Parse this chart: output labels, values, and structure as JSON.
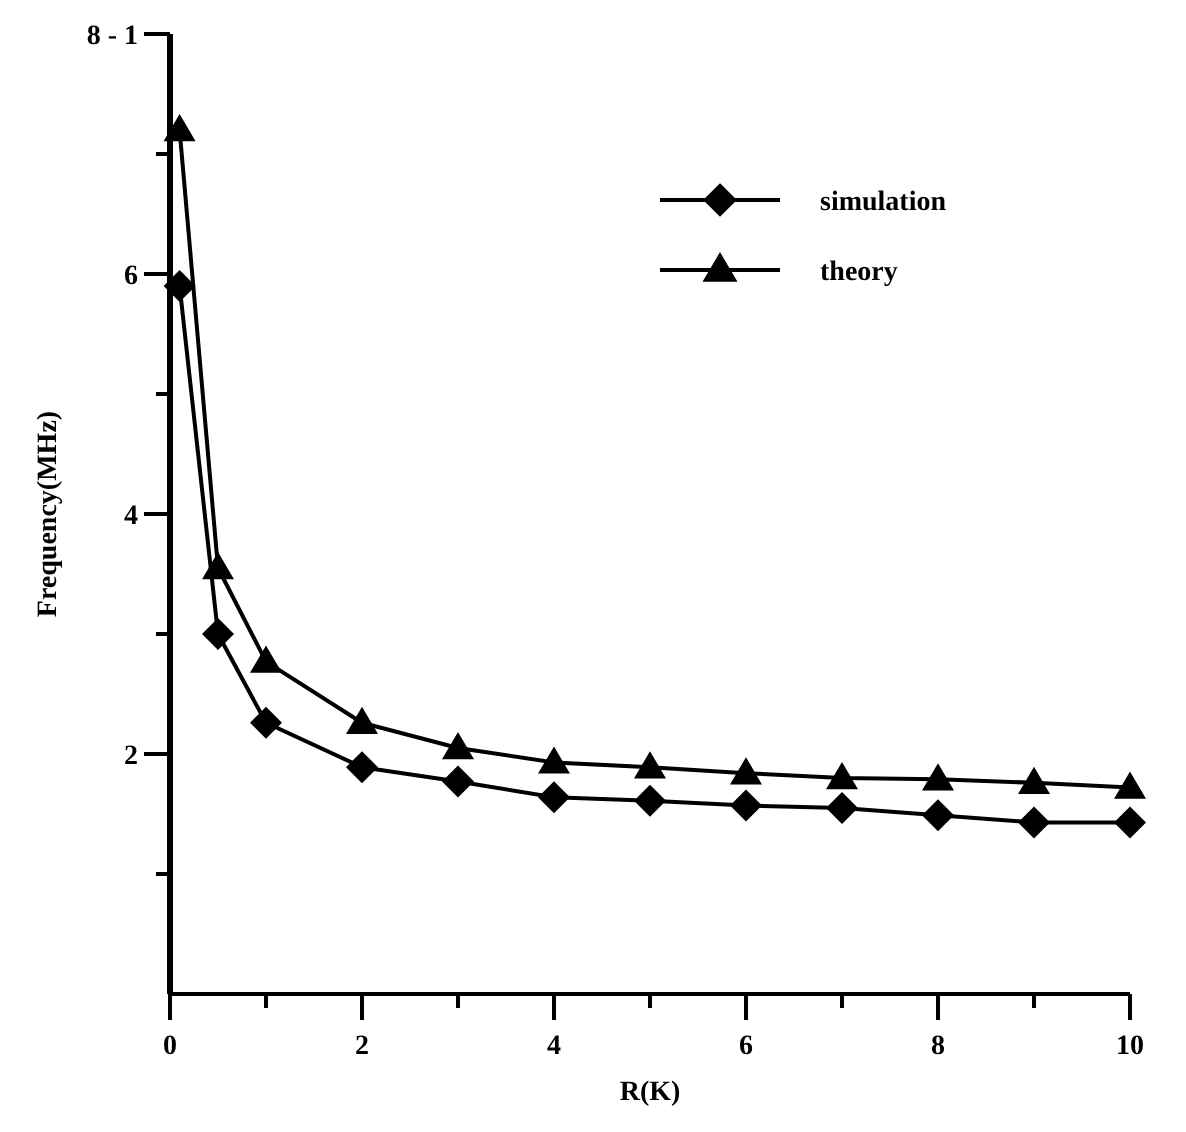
{
  "chart_data": {
    "type": "line",
    "xlabel": "R(K)",
    "ylabel": "Frequency(MHz)",
    "x": [
      0.1,
      0.5,
      1,
      2,
      3,
      4,
      5,
      6,
      7,
      8,
      9,
      10
    ],
    "xlim": [
      0,
      10
    ],
    "ylim": [
      0,
      8
    ],
    "xticks": [
      0,
      {
        "value": 1,
        "label": null
      },
      2,
      {
        "value": 3,
        "label": null
      },
      4,
      {
        "value": 5,
        "label": null
      },
      6,
      {
        "value": 7,
        "label": null
      },
      8,
      {
        "value": 9,
        "label": null
      },
      10
    ],
    "yticks": [
      {
        "value": 1,
        "label": null
      },
      2,
      {
        "value": 3,
        "label": null
      },
      4,
      {
        "value": 5,
        "label": null
      },
      6,
      {
        "value": 7,
        "label": null
      },
      {
        "value": 8,
        "label": "8 - 1"
      }
    ],
    "legend": "top right",
    "grid": false,
    "series": [
      {
        "name": "simulation",
        "color": "#000000",
        "marker": "diamond",
        "values": [
          5.9,
          3.0,
          2.26,
          1.89,
          1.77,
          1.64,
          1.61,
          1.57,
          1.55,
          1.49,
          1.43,
          1.43
        ]
      },
      {
        "name": "theory",
        "color": "#000000",
        "marker": "triangle",
        "values": [
          7.2,
          3.55,
          2.77,
          2.26,
          2.05,
          1.93,
          1.89,
          1.84,
          1.8,
          1.79,
          1.76,
          1.72
        ]
      }
    ]
  }
}
